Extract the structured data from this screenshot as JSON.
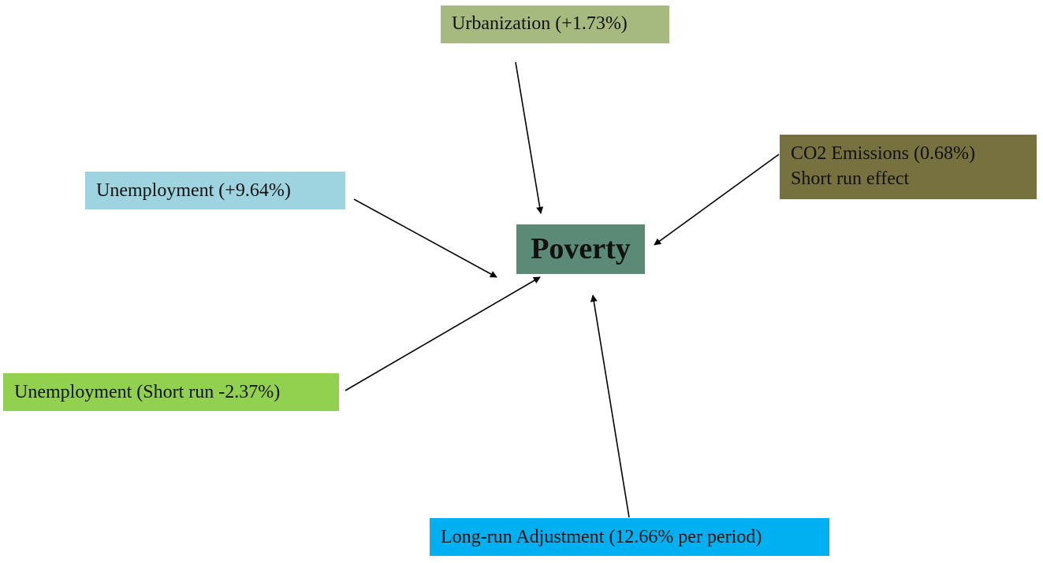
{
  "diagram": {
    "center": {
      "label": "Poverty",
      "color": "#5b8a76"
    },
    "factors": [
      {
        "id": "urbanization",
        "lines": [
          "Urbanization (+1.73%)"
        ],
        "color": "#a6b97f"
      },
      {
        "id": "co2",
        "lines": [
          "CO2 Emissions (0.68%)",
          "Short run effect"
        ],
        "color": "#77703f"
      },
      {
        "id": "unemp1",
        "lines": [
          "Unemployment (+9.64%)"
        ],
        "color": "#9ed4df"
      },
      {
        "id": "unemp2",
        "lines": [
          "Unemployment (Short run -2.37%)"
        ],
        "color": "#92d050"
      },
      {
        "id": "longrun",
        "lines": [
          "Long-run Adjustment (12.66% per period)"
        ],
        "color": "#00b0f0"
      }
    ]
  }
}
